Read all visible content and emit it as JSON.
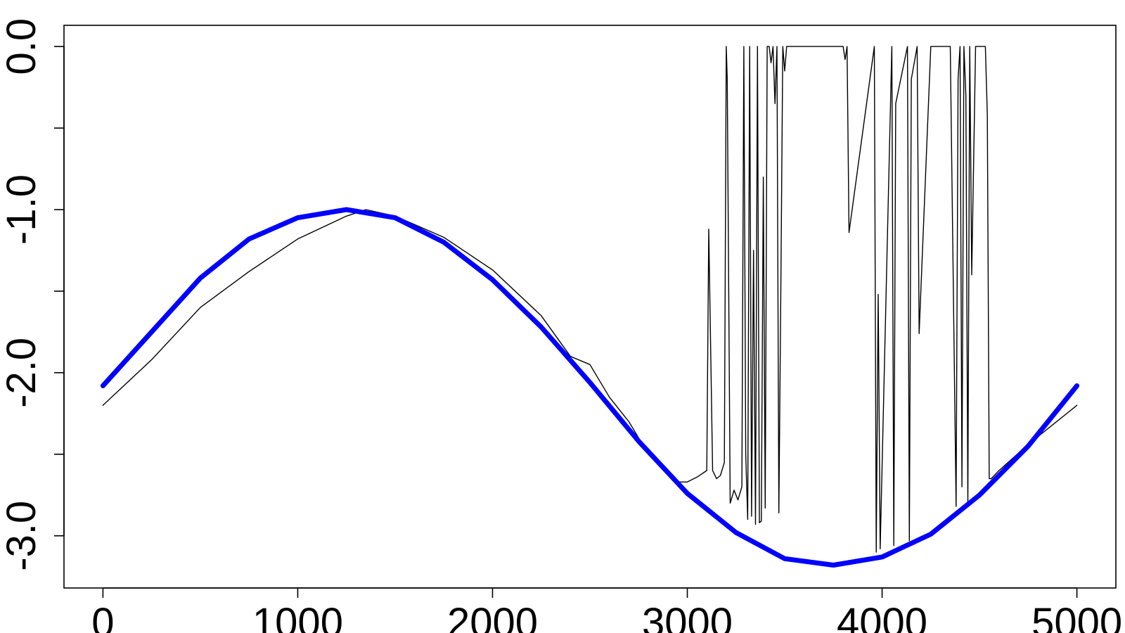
{
  "chart_data": {
    "type": "line",
    "title": "",
    "xlabel": "",
    "ylabel": "",
    "xlim": [
      -200,
      5200
    ],
    "ylim": [
      -3.32,
      0.13
    ],
    "grid": false,
    "legend": "none",
    "x_ticks": [
      {
        "value": 0,
        "label": "0"
      },
      {
        "value": 1000,
        "label": "1000"
      },
      {
        "value": 2000,
        "label": "2000"
      },
      {
        "value": 3000,
        "label": "3000"
      },
      {
        "value": 4000,
        "label": "4000"
      },
      {
        "value": 5000,
        "label": "5000"
      }
    ],
    "y_ticks": [
      {
        "value": 0.0,
        "label": "0.0"
      },
      {
        "value": -0.5,
        "label": ""
      },
      {
        "value": -1.0,
        "label": "-1.0"
      },
      {
        "value": -1.5,
        "label": ""
      },
      {
        "value": -2.0,
        "label": "-2.0"
      },
      {
        "value": -2.5,
        "label": ""
      },
      {
        "value": -3.0,
        "label": "-3.0"
      }
    ],
    "series": [
      {
        "style": "thick-smooth",
        "color": "#0000ff",
        "x": [
          0,
          250,
          500,
          750,
          1000,
          1250,
          1500,
          1750,
          2000,
          2250,
          2500,
          2750,
          3000,
          3250,
          3500,
          3750,
          4000,
          4250,
          4500,
          4750,
          5000
        ],
        "y": [
          -2.08,
          -1.75,
          -1.42,
          -1.18,
          -1.05,
          -1.0,
          -1.05,
          -1.2,
          -1.43,
          -1.72,
          -2.06,
          -2.42,
          -2.74,
          -2.98,
          -3.14,
          -3.18,
          -3.13,
          -2.99,
          -2.75,
          -2.45,
          -2.08
        ]
      },
      {
        "style": "thin-noisy",
        "color": "#000000",
        "x": [
          0,
          250,
          500,
          750,
          1000,
          1250,
          1350,
          1500,
          1750,
          2000,
          2250,
          2400,
          2500,
          2600,
          2700,
          2750,
          2800,
          2850,
          2900,
          2950,
          3000,
          3050,
          3100,
          3110,
          3130,
          3150,
          3170,
          3190,
          3200,
          3205,
          3220,
          3240,
          3260,
          3280,
          3290,
          3300,
          3310,
          3320,
          3330,
          3340,
          3350,
          3360,
          3370,
          3380,
          3390,
          3400,
          3410,
          3420,
          3430,
          3440,
          3450,
          3460,
          3470,
          3480,
          3490,
          3500,
          3510,
          3520,
          3800,
          3810,
          3820,
          3830,
          3960,
          3970,
          3980,
          3990,
          4050,
          4060,
          4070,
          4130,
          4140,
          4150,
          4180,
          4190,
          4250,
          4300,
          4350,
          4380,
          4390,
          4400,
          4410,
          4420,
          4430,
          4440,
          4450,
          4460,
          4480,
          4500,
          4530,
          4540,
          4550,
          4560,
          4600,
          4750,
          5000
        ],
        "y": [
          -2.2,
          -1.92,
          -1.6,
          -1.38,
          -1.18,
          -1.04,
          -1.0,
          -1.04,
          -1.17,
          -1.37,
          -1.65,
          -1.9,
          -1.95,
          -2.15,
          -2.3,
          -2.4,
          -2.5,
          -2.55,
          -2.62,
          -2.67,
          -2.67,
          -2.64,
          -2.6,
          -1.12,
          -2.6,
          -2.65,
          -2.63,
          -2.55,
          0.0,
          -0.2,
          -2.8,
          -2.72,
          -2.78,
          -2.7,
          0.0,
          -2.5,
          -2.9,
          0.0,
          -2.88,
          -1.25,
          -2.93,
          0.0,
          -2.92,
          -2.91,
          -0.8,
          -2.83,
          0.0,
          0.0,
          -0.1,
          0.0,
          -0.35,
          0.0,
          -2.86,
          -1.5,
          0.0,
          -0.15,
          0.0,
          0.0,
          0.0,
          -0.08,
          0.0,
          -1.14,
          0.0,
          -3.1,
          -1.52,
          -3.08,
          0.0,
          -3.06,
          -0.35,
          0.0,
          -3.03,
          -0.2,
          0.0,
          -1.76,
          0.0,
          0.0,
          0.0,
          -2.82,
          -0.2,
          0.0,
          -2.7,
          0.0,
          -0.3,
          -2.8,
          0.0,
          -1.4,
          0.0,
          0.0,
          0.0,
          -0.42,
          -2.65,
          -2.65,
          -2.6,
          -2.44,
          -2.2
        ]
      }
    ]
  }
}
